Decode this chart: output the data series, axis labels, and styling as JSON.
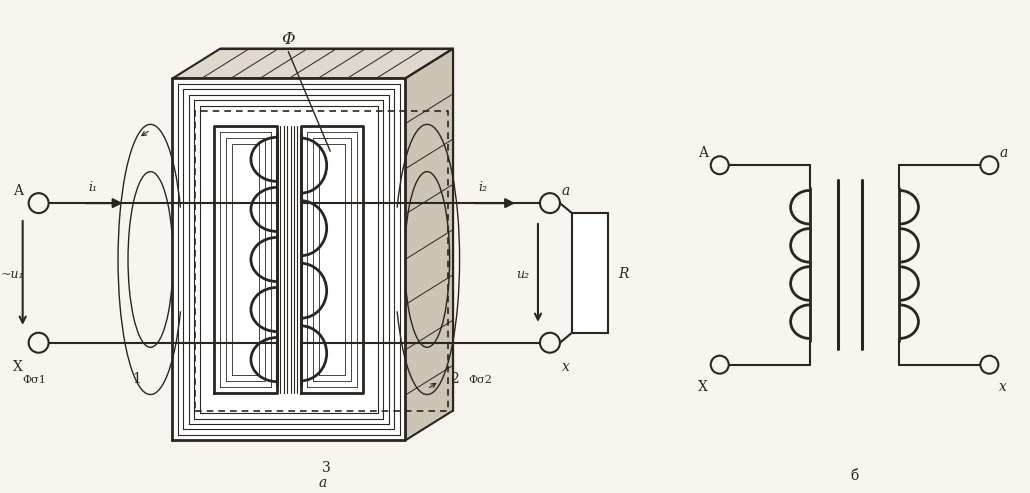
{
  "bg_color": "#f8f5f0",
  "line_color": "#2a2520",
  "fig_width": 10.3,
  "fig_height": 4.93,
  "label_a_bot": "a",
  "label_b_bot": "б",
  "phi_label": "Φ",
  "i1_label": "i₁",
  "i2_label": "i₂",
  "u1_label": "~u₁",
  "u2_label": "u₂",
  "A_label": "A",
  "X_label": "X",
  "a_label": "a",
  "x_label": "x",
  "R_label": "R",
  "phi_s1_label": "Φσ1",
  "phi_s2_label": "Φσ2",
  "label_1": "1",
  "label_2": "2",
  "label_3": "3",
  "core_white": "#ffffff",
  "core_dark": "#2a2520",
  "core_face_color": "#f0ece4"
}
